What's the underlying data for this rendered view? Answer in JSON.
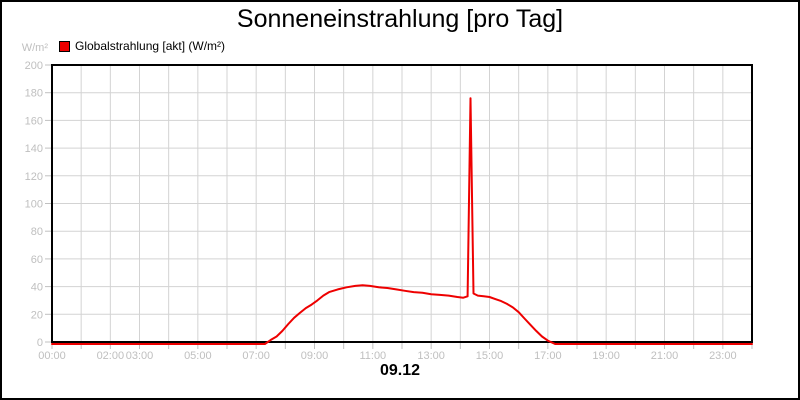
{
  "window": {
    "background": "#ffffff",
    "border_color": "#000000"
  },
  "chart": {
    "title": "Sonneneinstrahlung [pro Tag]",
    "y_unit": "W/m²",
    "x_date_label": "09.12",
    "legend": {
      "label": "Globalstrahlung [akt] (W/m²)",
      "marker_color": "#ee0000"
    }
  },
  "chart_data": {
    "type": "line",
    "title": "Sonneneinstrahlung [pro Tag]",
    "xlabel": "09.12",
    "ylabel": "W/m²",
    "xlim": [
      0,
      24
    ],
    "ylim": [
      0,
      200
    ],
    "grid": true,
    "legend_position": "top-left",
    "colors": {
      "series": "#ee0000",
      "grid": "#d3d3d3",
      "tick": "#c0c0c0",
      "tick_label": "#bfbfbf",
      "axis": "#000000"
    },
    "y_ticks": [
      0,
      20,
      40,
      60,
      80,
      100,
      120,
      140,
      160,
      180,
      200
    ],
    "x_tick_interval_hours": 1,
    "x_tick_labels": [
      {
        "hour": 0,
        "label": "00:00"
      },
      {
        "hour": 2,
        "label": "02:00"
      },
      {
        "hour": 3,
        "label": "03:00"
      },
      {
        "hour": 5,
        "label": "05:00"
      },
      {
        "hour": 7,
        "label": "07:00"
      },
      {
        "hour": 9,
        "label": "09:00"
      },
      {
        "hour": 11,
        "label": "11:00"
      },
      {
        "hour": 13,
        "label": "13:00"
      },
      {
        "hour": 15,
        "label": "15:00"
      },
      {
        "hour": 17,
        "label": "17:00"
      },
      {
        "hour": 19,
        "label": "19:00"
      },
      {
        "hour": 21,
        "label": "21:00"
      },
      {
        "hour": 23,
        "label": "23:00"
      }
    ],
    "series": [
      {
        "name": "Globalstrahlung [akt] (W/m²)",
        "color": "#ee0000",
        "units": "W/m²",
        "points": [
          [
            0,
            0
          ],
          [
            1,
            0
          ],
          [
            2,
            0
          ],
          [
            3,
            0
          ],
          [
            4,
            0
          ],
          [
            5,
            0
          ],
          [
            6,
            0
          ],
          [
            7,
            0
          ],
          [
            7.3,
            0
          ],
          [
            7.5,
            1.5
          ],
          [
            7.7,
            4
          ],
          [
            7.9,
            8
          ],
          [
            8.1,
            13
          ],
          [
            8.3,
            17.5
          ],
          [
            8.5,
            21
          ],
          [
            8.7,
            24.5
          ],
          [
            8.9,
            27
          ],
          [
            9.1,
            30
          ],
          [
            9.3,
            33.5
          ],
          [
            9.5,
            36
          ],
          [
            9.8,
            38
          ],
          [
            10.1,
            39.5
          ],
          [
            10.4,
            40.5
          ],
          [
            10.65,
            41
          ],
          [
            10.9,
            40.5
          ],
          [
            11.2,
            39.5
          ],
          [
            11.5,
            39
          ],
          [
            11.8,
            38
          ],
          [
            12.1,
            37
          ],
          [
            12.4,
            36
          ],
          [
            12.7,
            35.5
          ],
          [
            13,
            34.5
          ],
          [
            13.3,
            34
          ],
          [
            13.6,
            33.5
          ],
          [
            13.9,
            32.5
          ],
          [
            14.1,
            32
          ],
          [
            14.25,
            33
          ],
          [
            14.35,
            176
          ],
          [
            14.45,
            35
          ],
          [
            14.6,
            33.5
          ],
          [
            14.8,
            33
          ],
          [
            15,
            32.5
          ],
          [
            15.2,
            31
          ],
          [
            15.4,
            29.5
          ],
          [
            15.6,
            27.5
          ],
          [
            15.8,
            25
          ],
          [
            16,
            21.5
          ],
          [
            16.2,
            17
          ],
          [
            16.4,
            12.5
          ],
          [
            16.6,
            8
          ],
          [
            16.8,
            4
          ],
          [
            17,
            1
          ],
          [
            17.25,
            0
          ],
          [
            18,
            0
          ],
          [
            19,
            0
          ],
          [
            20,
            0
          ],
          [
            21,
            0
          ],
          [
            22,
            0
          ],
          [
            23,
            0
          ],
          [
            24,
            0
          ]
        ]
      }
    ]
  }
}
